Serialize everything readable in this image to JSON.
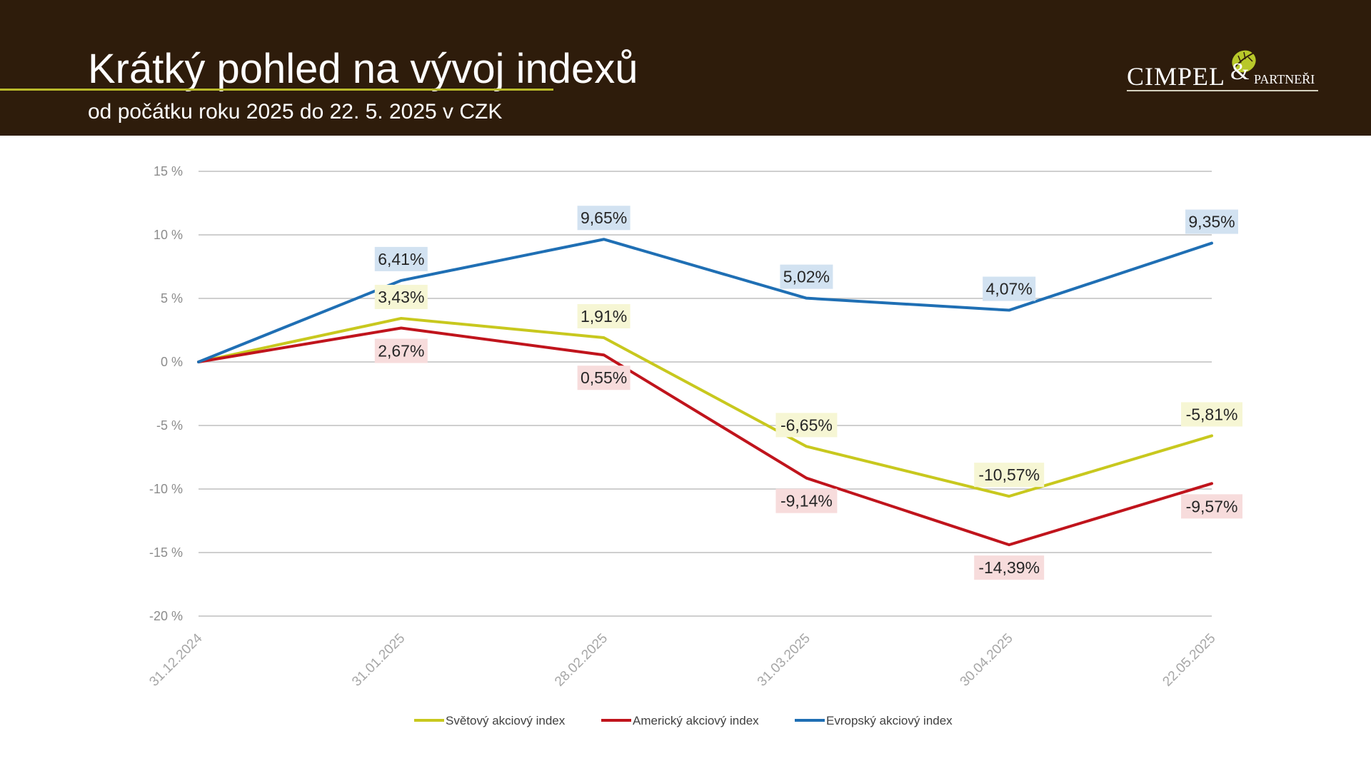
{
  "header": {
    "title": "Krátký pohled na vývoj indexů",
    "subtitle": "od počátku roku 2025 do 22. 5. 2025 v CZK",
    "logo": {
      "name": "CIMPEL",
      "amp": "&",
      "suffix": "PARTNEŘI"
    },
    "background_color": "#2e1c0b",
    "accent_color": "#b8b82a"
  },
  "chart_data": {
    "type": "line",
    "categories": [
      "31.12.2024",
      "31.01.2025",
      "28.02.2025",
      "31.03.2025",
      "30.04.2025",
      "22.05.2025"
    ],
    "ylim": [
      -20,
      15
    ],
    "yticks": [
      15,
      10,
      5,
      0,
      -5,
      -10,
      -15,
      -20
    ],
    "ytick_labels": [
      "15 %",
      "10 %",
      "5 %",
      "0 %",
      "-5 %",
      "-10 %",
      "-15 %",
      "-20 %"
    ],
    "grid": true,
    "legend_position": "bottom",
    "series": [
      {
        "name": "Světový akciový index",
        "color": "#c8c81e",
        "label_bg": "#f6f6d4",
        "values": [
          0,
          3.43,
          1.91,
          -6.65,
          -10.57,
          -5.81
        ],
        "labels": [
          "",
          "3,43%",
          "1,91%",
          "-6,65%",
          "-10,57%",
          "-5,81%"
        ]
      },
      {
        "name": "Americký akciový index",
        "color": "#c0141c",
        "label_bg": "#f7dcdc",
        "values": [
          0,
          2.67,
          0.55,
          -9.14,
          -14.39,
          -9.57
        ],
        "labels": [
          "",
          "2,67%",
          "0,55%",
          "-9,14%",
          "-14,39%",
          "-9,57%"
        ]
      },
      {
        "name": "Evropský akciový index",
        "color": "#1f6fb4",
        "label_bg": "#d2e2f1",
        "values": [
          0,
          6.41,
          9.65,
          5.02,
          4.07,
          9.35
        ],
        "labels": [
          "",
          "6,41%",
          "9,65%",
          "5,02%",
          "4,07%",
          "9,35%"
        ]
      }
    ]
  }
}
